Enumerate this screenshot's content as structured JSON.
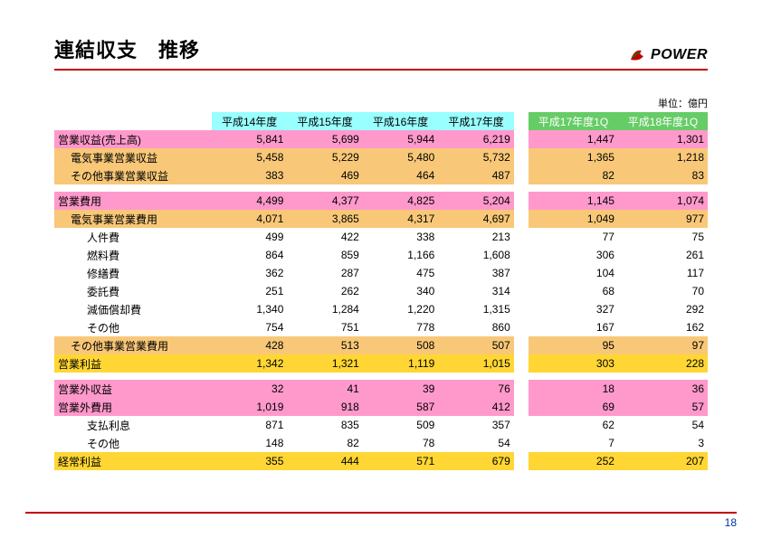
{
  "title": "連結収支　推移",
  "logo_text": "POWER",
  "unit": "単位：億円",
  "page_number": "18",
  "columns_a": [
    "平成14年度",
    "平成15年度",
    "平成16年度",
    "平成17年度"
  ],
  "columns_b": [
    "平成17年度1Q",
    "平成18年度1Q"
  ],
  "rows": [
    {
      "cls": "pink",
      "ind": 0,
      "label": "営業収益(売上高)",
      "a": [
        "5,841",
        "5,699",
        "5,944",
        "6,219"
      ],
      "b": [
        "1,447",
        "1,301"
      ]
    },
    {
      "cls": "orange",
      "ind": 1,
      "label": "電気事業営業収益",
      "a": [
        "5,458",
        "5,229",
        "5,480",
        "5,732"
      ],
      "b": [
        "1,365",
        "1,218"
      ]
    },
    {
      "cls": "orange",
      "ind": 1,
      "label": "その他事業営業収益",
      "a": [
        "383",
        "469",
        "464",
        "487"
      ],
      "b": [
        "82",
        "83"
      ]
    },
    {
      "spacer": true
    },
    {
      "cls": "pink",
      "ind": 0,
      "label": "営業費用",
      "a": [
        "4,499",
        "4,377",
        "4,825",
        "5,204"
      ],
      "b": [
        "1,145",
        "1,074"
      ]
    },
    {
      "cls": "orange",
      "ind": 1,
      "label": "電気事業営業費用",
      "a": [
        "4,071",
        "3,865",
        "4,317",
        "4,697"
      ],
      "b": [
        "1,049",
        "977"
      ]
    },
    {
      "cls": "white",
      "ind": 2,
      "label": "人件費",
      "a": [
        "499",
        "422",
        "338",
        "213"
      ],
      "b": [
        "77",
        "75"
      ]
    },
    {
      "cls": "white",
      "ind": 2,
      "label": "燃料費",
      "a": [
        "864",
        "859",
        "1,166",
        "1,608"
      ],
      "b": [
        "306",
        "261"
      ]
    },
    {
      "cls": "white",
      "ind": 2,
      "label": "修繕費",
      "a": [
        "362",
        "287",
        "475",
        "387"
      ],
      "b": [
        "104",
        "117"
      ]
    },
    {
      "cls": "white",
      "ind": 2,
      "label": "委託費",
      "a": [
        "251",
        "262",
        "340",
        "314"
      ],
      "b": [
        "68",
        "70"
      ]
    },
    {
      "cls": "white",
      "ind": 2,
      "label": "減価償却費",
      "a": [
        "1,340",
        "1,284",
        "1,220",
        "1,315"
      ],
      "b": [
        "327",
        "292"
      ]
    },
    {
      "cls": "white",
      "ind": 2,
      "label": "その他",
      "a": [
        "754",
        "751",
        "778",
        "860"
      ],
      "b": [
        "167",
        "162"
      ]
    },
    {
      "cls": "orange",
      "ind": 1,
      "label": "その他事業営業費用",
      "a": [
        "428",
        "513",
        "508",
        "507"
      ],
      "b": [
        "95",
        "97"
      ]
    },
    {
      "cls": "yellow",
      "ind": 0,
      "label": "営業利益",
      "a": [
        "1,342",
        "1,321",
        "1,119",
        "1,015"
      ],
      "b": [
        "303",
        "228"
      ]
    },
    {
      "spacer": true
    },
    {
      "cls": "pink",
      "ind": 0,
      "label": "営業外収益",
      "a": [
        "32",
        "41",
        "39",
        "76"
      ],
      "b": [
        "18",
        "36"
      ]
    },
    {
      "cls": "pink",
      "ind": 0,
      "label": "営業外費用",
      "a": [
        "1,019",
        "918",
        "587",
        "412"
      ],
      "b": [
        "69",
        "57"
      ]
    },
    {
      "cls": "white",
      "ind": 2,
      "label": "支払利息",
      "a": [
        "871",
        "835",
        "509",
        "357"
      ],
      "b": [
        "62",
        "54"
      ]
    },
    {
      "cls": "white",
      "ind": 2,
      "label": "その他",
      "a": [
        "148",
        "82",
        "78",
        "54"
      ],
      "b": [
        "7",
        "3"
      ]
    },
    {
      "cls": "yellow",
      "ind": 0,
      "label": "経常利益",
      "a": [
        "355",
        "444",
        "571",
        "679"
      ],
      "b": [
        "252",
        "207"
      ]
    }
  ]
}
